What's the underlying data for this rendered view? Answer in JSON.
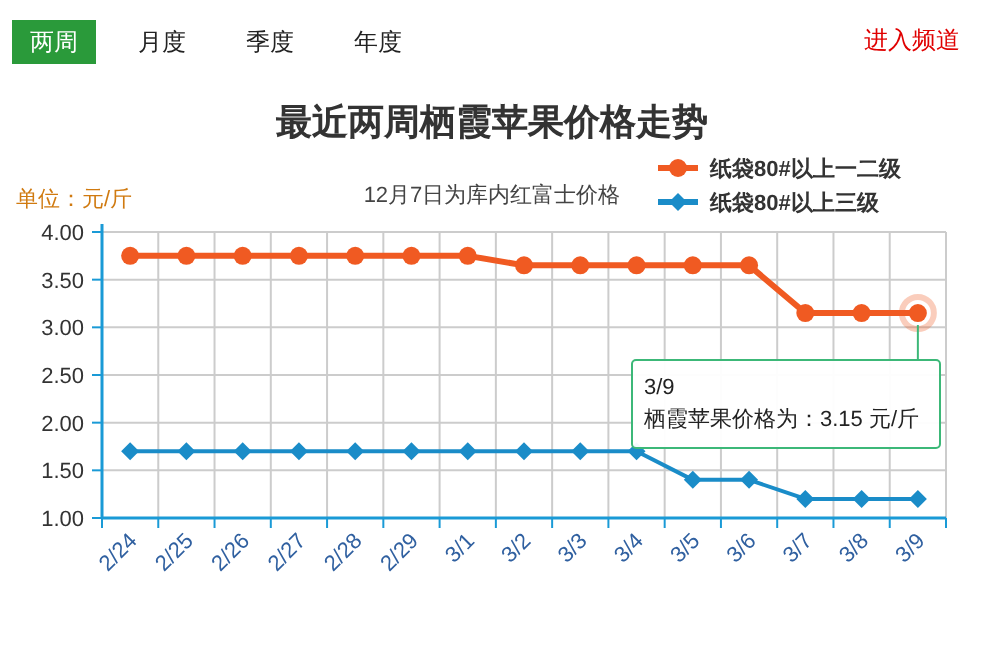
{
  "chart_data": {
    "type": "line",
    "title": "最近两周栖霞苹果价格走势",
    "subtitle": "12月7日为库内红富士价格",
    "ylabel": "单位：元/斤",
    "categories": [
      "2/24",
      "2/25",
      "2/26",
      "2/27",
      "2/28",
      "2/29",
      "3/1",
      "3/2",
      "3/3",
      "3/4",
      "3/5",
      "3/6",
      "3/7",
      "3/8",
      "3/9"
    ],
    "series": [
      {
        "name": "纸袋80#以上一二级",
        "color": "#f05a22",
        "marker": "circle",
        "values": [
          3.75,
          3.75,
          3.75,
          3.75,
          3.75,
          3.75,
          3.75,
          3.65,
          3.65,
          3.65,
          3.65,
          3.65,
          3.15,
          3.15,
          3.15
        ]
      },
      {
        "name": "纸袋80#以上三级",
        "color": "#1a8cc8",
        "marker": "diamond",
        "values": [
          1.7,
          1.7,
          1.7,
          1.7,
          1.7,
          1.7,
          1.7,
          1.7,
          1.7,
          1.7,
          1.4,
          1.4,
          1.2,
          1.2,
          1.2
        ]
      }
    ],
    "ylim": [
      1,
      4
    ],
    "yticks": [
      {
        "value": 1,
        "label": "1.00"
      },
      {
        "value": 1.5,
        "label": "1.50"
      },
      {
        "value": 2,
        "label": "2.00"
      },
      {
        "value": 2.5,
        "label": "2.50"
      },
      {
        "value": 3,
        "label": "3.00"
      },
      {
        "value": 3.5,
        "label": "3.50"
      },
      {
        "value": 4,
        "label": "4.00"
      }
    ],
    "grid": true,
    "legend": "top right",
    "annotations": [
      "两周",
      "月度",
      "季度",
      "年度",
      "进入频道",
      {
        "text": "3/9\n栖霞苹果价格为：3.15 元/斤",
        "x": "3/9",
        "y": 3.15
      }
    ]
  }
}
